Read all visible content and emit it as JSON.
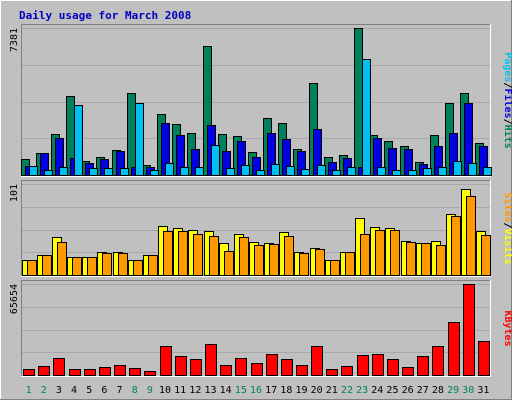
{
  "chart_data": {
    "type": "bar",
    "title": "Daily usage for March 2008",
    "categories": [
      "1",
      "2",
      "3",
      "4",
      "5",
      "6",
      "7",
      "8",
      "9",
      "10",
      "11",
      "12",
      "13",
      "14",
      "15",
      "16",
      "17",
      "18",
      "19",
      "20",
      "21",
      "22",
      "23",
      "24",
      "25",
      "26",
      "27",
      "28",
      "29",
      "30",
      "31"
    ],
    "weekend_days": [
      "1",
      "2",
      "8",
      "9",
      "15",
      "16",
      "22",
      "23",
      "29",
      "30"
    ],
    "panels": [
      {
        "id": "hits-files-pages",
        "ymax": 7381,
        "ymax_label": "7381",
        "legend": [
          "Pages",
          "Files",
          "Hits"
        ],
        "series": [
          {
            "name": "Hits",
            "color": "#00805c",
            "values": [
              780,
              1080,
              2050,
              3980,
              680,
              900,
              1250,
              4120,
              500,
              3050,
              2580,
              2100,
              6470,
              2080,
              1950,
              1150,
              2850,
              2600,
              1320,
              4630,
              890,
              990,
              7380,
              1990,
              1700,
              1480,
              640,
              2030,
              3620,
              4120,
              1600
            ]
          },
          {
            "name": "Files",
            "color": "#0000e6",
            "values": [
              470,
              1090,
              1850,
              850,
              580,
              820,
              1200,
              400,
              390,
              2600,
              1990,
              1300,
              2520,
              1200,
              1700,
              900,
              2100,
              1800,
              1220,
              2300,
              650,
              830,
              380,
              1870,
              1370,
              1300,
              540,
              1450,
              2120,
              3630,
              1470
            ]
          },
          {
            "name": "Pages",
            "color": "#00c0f0",
            "values": [
              440,
              250,
              390,
              3500,
              360,
              330,
              350,
              3610,
              250,
              600,
              400,
              420,
              1520,
              340,
              500,
              230,
              540,
              450,
              280,
              520,
              260,
              390,
              5820,
              400,
              260,
              260,
              330,
              400,
              720,
              600,
              380
            ]
          }
        ]
      },
      {
        "id": "visits-sites",
        "ymax": 101,
        "ymax_label": "101",
        "legend": [
          "Sites",
          "Visits"
        ],
        "series": [
          {
            "name": "Visits",
            "color": "#ffff00",
            "values": [
              17,
              22,
              42,
              20,
              20,
              26,
              26,
              17,
              22,
              54,
              52,
              50,
              49,
              35,
              45,
              37,
              35,
              48,
              25,
              30,
              17,
              26,
              63,
              53,
              52,
              38,
              36,
              38,
              68,
              96,
              49
            ]
          },
          {
            "name": "Sites",
            "color": "#ff9900",
            "values": [
              17,
              22,
              37,
              20,
              20,
              24,
              24,
              17,
              22,
              49,
              49,
              46,
              43,
              27,
              42,
              33,
              34,
              43,
              24,
              29,
              17,
              26,
              45,
              50,
              50,
              37,
              35,
              33,
              65,
              88,
              44
            ]
          }
        ]
      },
      {
        "id": "kbytes",
        "ymax": 65654,
        "ymax_label": "65654",
        "legend": [
          "KBytes"
        ],
        "series": [
          {
            "name": "KBytes",
            "color": "#ff0000",
            "values": [
              4600,
              6500,
              12100,
              4200,
              4000,
              6000,
              7300,
              4800,
              2900,
              20800,
              14000,
              11300,
              22700,
              7100,
              12400,
              8500,
              15400,
              11500,
              7300,
              21100,
              4100,
              6600,
              14600,
              15000,
              11600,
              5600,
              13600,
              20900,
              38200,
              65500,
              24500
            ]
          }
        ]
      }
    ]
  }
}
